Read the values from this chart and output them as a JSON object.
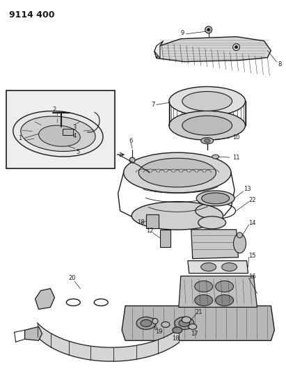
{
  "title": "9114 400",
  "bg_color": "#ffffff",
  "line_color": "#1a1a1a",
  "title_fontsize": 9,
  "fig_width": 4.11,
  "fig_height": 5.33,
  "dpi": 100,
  "label_fs": 6.0,
  "lw_main": 0.9,
  "lw_thin": 0.5,
  "gray_fill": "#d0d0d0",
  "gray_dark": "#888888",
  "gray_light": "#eeeeee",
  "gray_med": "#bbbbbb"
}
